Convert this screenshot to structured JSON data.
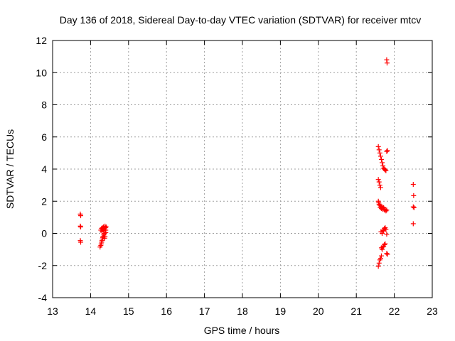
{
  "chart_data": {
    "type": "scatter",
    "title": "Day 136 of 2018, Sidereal Day-to-day VTEC variation (SDTVAR) for receiver mtcv",
    "xlabel": "GPS time / hours",
    "ylabel": "SDTVAR / TECUs",
    "xlim": [
      13,
      23
    ],
    "ylim": [
      -4,
      12
    ],
    "x_ticks": [
      "13",
      "14",
      "15",
      "16",
      "17",
      "18",
      "19",
      "20",
      "21",
      "22",
      "23"
    ],
    "y_ticks": [
      "-4",
      "-2",
      "0",
      "2",
      "4",
      "6",
      "8",
      "10",
      "12"
    ],
    "grid": true,
    "marker": "+",
    "series": [
      {
        "name": "SDTVAR",
        "color": "#ff0000",
        "points": [
          [
            13.73,
            1.2
          ],
          [
            13.74,
            1.1
          ],
          [
            13.73,
            0.45
          ],
          [
            13.74,
            0.4
          ],
          [
            13.73,
            -0.45
          ],
          [
            13.74,
            -0.55
          ],
          [
            14.25,
            -0.85
          ],
          [
            14.27,
            -0.75
          ],
          [
            14.28,
            -0.65
          ],
          [
            14.29,
            -0.55
          ],
          [
            14.3,
            -0.45
          ],
          [
            14.31,
            -0.35
          ],
          [
            14.32,
            -0.25
          ],
          [
            14.33,
            -0.2
          ],
          [
            14.35,
            -0.1
          ],
          [
            14.36,
            0.0
          ],
          [
            14.37,
            -0.3
          ],
          [
            14.38,
            -0.2
          ],
          [
            14.27,
            0.2
          ],
          [
            14.29,
            0.3
          ],
          [
            14.3,
            0.1
          ],
          [
            14.31,
            0.35
          ],
          [
            14.33,
            0.25
          ],
          [
            14.34,
            0.4
          ],
          [
            14.36,
            0.3
          ],
          [
            14.38,
            0.45
          ],
          [
            14.39,
            0.35
          ],
          [
            14.4,
            0.2
          ],
          [
            14.41,
            0.4
          ],
          [
            14.35,
            0.15
          ],
          [
            14.4,
            0.05
          ],
          [
            21.58,
            5.4
          ],
          [
            21.6,
            5.2
          ],
          [
            21.62,
            5.0
          ],
          [
            21.64,
            4.8
          ],
          [
            21.66,
            4.6
          ],
          [
            21.68,
            4.4
          ],
          [
            21.7,
            4.2
          ],
          [
            21.72,
            4.05
          ],
          [
            21.74,
            4.0
          ],
          [
            21.76,
            3.95
          ],
          [
            21.78,
            3.9
          ],
          [
            21.8,
            5.1
          ],
          [
            21.82,
            5.15
          ],
          [
            21.8,
            10.8
          ],
          [
            21.81,
            10.6
          ],
          [
            21.58,
            3.35
          ],
          [
            21.6,
            3.2
          ],
          [
            21.62,
            3.0
          ],
          [
            21.64,
            2.85
          ],
          [
            21.58,
            2.0
          ],
          [
            21.59,
            1.9
          ],
          [
            21.6,
            1.8
          ],
          [
            21.62,
            1.75
          ],
          [
            21.63,
            1.6
          ],
          [
            21.65,
            1.7
          ],
          [
            21.66,
            1.55
          ],
          [
            21.68,
            1.65
          ],
          [
            21.7,
            1.5
          ],
          [
            21.72,
            1.6
          ],
          [
            21.74,
            1.45
          ],
          [
            21.76,
            1.5
          ],
          [
            21.78,
            1.4
          ],
          [
            21.8,
            1.45
          ],
          [
            21.65,
            0.1
          ],
          [
            21.68,
            0.0
          ],
          [
            21.7,
            0.2
          ],
          [
            21.72,
            0.15
          ],
          [
            21.74,
            0.3
          ],
          [
            21.76,
            0.35
          ],
          [
            21.78,
            0.25
          ],
          [
            21.8,
            -0.05
          ],
          [
            21.66,
            -0.9
          ],
          [
            21.68,
            -1.0
          ],
          [
            21.7,
            -0.85
          ],
          [
            21.72,
            -0.8
          ],
          [
            21.74,
            -0.7
          ],
          [
            21.76,
            -0.65
          ],
          [
            21.8,
            -1.25
          ],
          [
            21.82,
            -1.3
          ],
          [
            21.58,
            -2.05
          ],
          [
            21.6,
            -1.85
          ],
          [
            21.62,
            -1.65
          ],
          [
            21.64,
            -1.55
          ],
          [
            21.66,
            -1.4
          ],
          [
            22.5,
            3.05
          ],
          [
            22.51,
            2.35
          ],
          [
            22.5,
            1.65
          ],
          [
            22.52,
            1.6
          ],
          [
            22.5,
            0.6
          ]
        ]
      }
    ]
  }
}
